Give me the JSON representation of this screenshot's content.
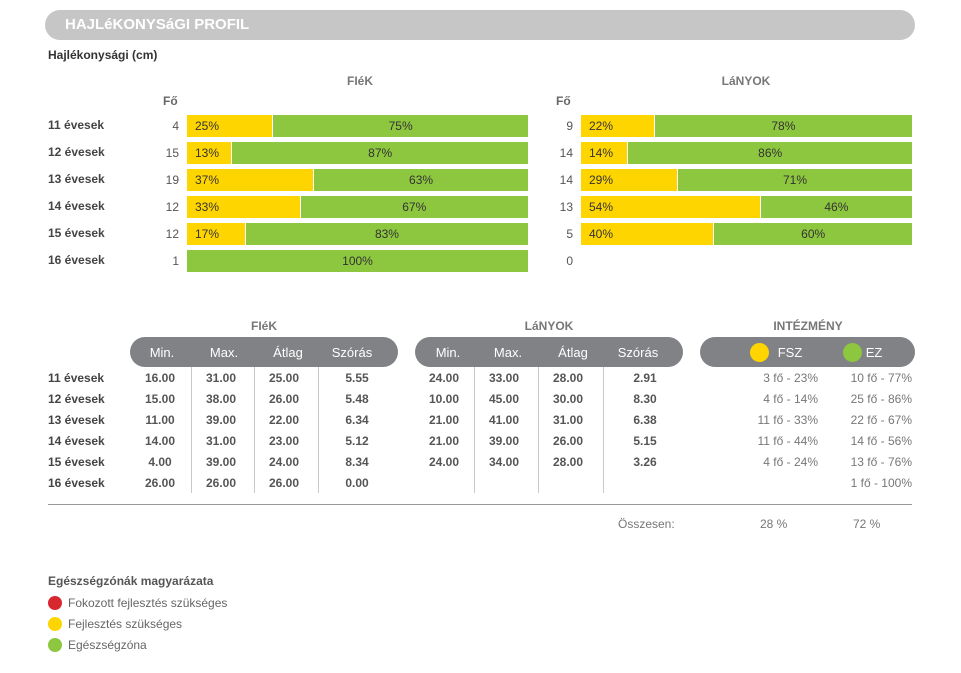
{
  "header": {
    "title": "HAJLéKONYSáGI PROFIL"
  },
  "subtitle": "Hajlékonysági (cm)",
  "chart": {
    "boys_title": "FIéK",
    "girls_title": "LáNYOK",
    "count_header": "Fő",
    "rows": [
      {
        "label": "11 évesek",
        "boys_n": "4",
        "boys_y": 25,
        "boys_g": 75,
        "boys_y_text": "25%",
        "boys_g_text": "75%",
        "girls_n": "9",
        "girls_y": 22,
        "girls_g": 78,
        "girls_y_text": "22%",
        "girls_g_text": "78%"
      },
      {
        "label": "12 évesek",
        "boys_n": "15",
        "boys_y": 13,
        "boys_g": 87,
        "boys_y_text": "13%",
        "boys_g_text": "87%",
        "girls_n": "14",
        "girls_y": 14,
        "girls_g": 86,
        "girls_y_text": "14%",
        "girls_g_text": "86%"
      },
      {
        "label": "13 évesek",
        "boys_n": "19",
        "boys_y": 37,
        "boys_g": 63,
        "boys_y_text": "37%",
        "boys_g_text": "63%",
        "girls_n": "14",
        "girls_y": 29,
        "girls_g": 71,
        "girls_y_text": "29%",
        "girls_g_text": "71%"
      },
      {
        "label": "14 évesek",
        "boys_n": "12",
        "boys_y": 33,
        "boys_g": 67,
        "boys_y_text": "33%",
        "boys_g_text": "67%",
        "girls_n": "13",
        "girls_y": 54,
        "girls_g": 46,
        "girls_y_text": "54%",
        "girls_g_text": "46%"
      },
      {
        "label": "15 évesek",
        "boys_n": "12",
        "boys_y": 17,
        "boys_g": 83,
        "boys_y_text": "17%",
        "boys_g_text": "83%",
        "girls_n": "5",
        "girls_y": 40,
        "girls_g": 60,
        "girls_y_text": "40%",
        "girls_g_text": "60%"
      },
      {
        "label": "16 évesek",
        "boys_n": "1",
        "boys_y": 0,
        "boys_g": 100,
        "boys_y_text": "",
        "boys_g_text": "100%",
        "girls_n": "0",
        "girls_y": 0,
        "girls_g": 0,
        "girls_y_text": "",
        "girls_g_text": ""
      }
    ]
  },
  "table": {
    "boys_title": "FIéK",
    "girls_title": "LáNYOK",
    "inst_title": "INTÉZMÉNY",
    "headers": [
      "Min.",
      "Max.",
      "Átlag",
      "Szórás"
    ],
    "inst_headers": [
      "FSZ",
      "EZ"
    ],
    "rows": [
      {
        "label": "11 évesek",
        "boys": [
          "16.00",
          "31.00",
          "25.00",
          "5.55"
        ],
        "girls": [
          "24.00",
          "33.00",
          "28.00",
          "2.91"
        ],
        "fsz": "3 fő - 23%",
        "ez": "10 fő - 77%"
      },
      {
        "label": "12 évesek",
        "boys": [
          "15.00",
          "38.00",
          "26.00",
          "5.48"
        ],
        "girls": [
          "10.00",
          "45.00",
          "30.00",
          "8.30"
        ],
        "fsz": "4 fő - 14%",
        "ez": "25 fő - 86%"
      },
      {
        "label": "13 évesek",
        "boys": [
          "11.00",
          "39.00",
          "22.00",
          "6.34"
        ],
        "girls": [
          "21.00",
          "41.00",
          "31.00",
          "6.38"
        ],
        "fsz": "11 fő - 33%",
        "ez": "22 fő - 67%"
      },
      {
        "label": "14 évesek",
        "boys": [
          "14.00",
          "31.00",
          "23.00",
          "5.12"
        ],
        "girls": [
          "21.00",
          "39.00",
          "26.00",
          "5.15"
        ],
        "fsz": "11 fő - 44%",
        "ez": "14 fő - 56%"
      },
      {
        "label": "15 évesek",
        "boys": [
          "4.00",
          "39.00",
          "24.00",
          "8.34"
        ],
        "girls": [
          "24.00",
          "34.00",
          "28.00",
          "3.26"
        ],
        "fsz": "4 fő - 24%",
        "ez": "13 fő - 76%"
      },
      {
        "label": "16 évesek",
        "boys": [
          "26.00",
          "26.00",
          "26.00",
          "0.00"
        ],
        "girls": [
          "",
          "",
          "",
          ""
        ],
        "fsz": "",
        "ez": "1 fő - 100%"
      }
    ],
    "total_label": "Összesen:",
    "total_fsz": "28 %",
    "total_ez": "72 %"
  },
  "legend": {
    "title": "Egészségzónák magyarázata",
    "items": [
      {
        "label": "Fokozott fejlesztés szükséges",
        "color": "#d7282f"
      },
      {
        "label": "Fejlesztés szükséges",
        "color": "#ffd500"
      },
      {
        "label": "Egészségzóna",
        "color": "#8dc63f"
      }
    ]
  },
  "colors": {
    "yellow": "#ffd500",
    "green": "#8dc63f",
    "red": "#d7282f",
    "pill": "#808285"
  }
}
